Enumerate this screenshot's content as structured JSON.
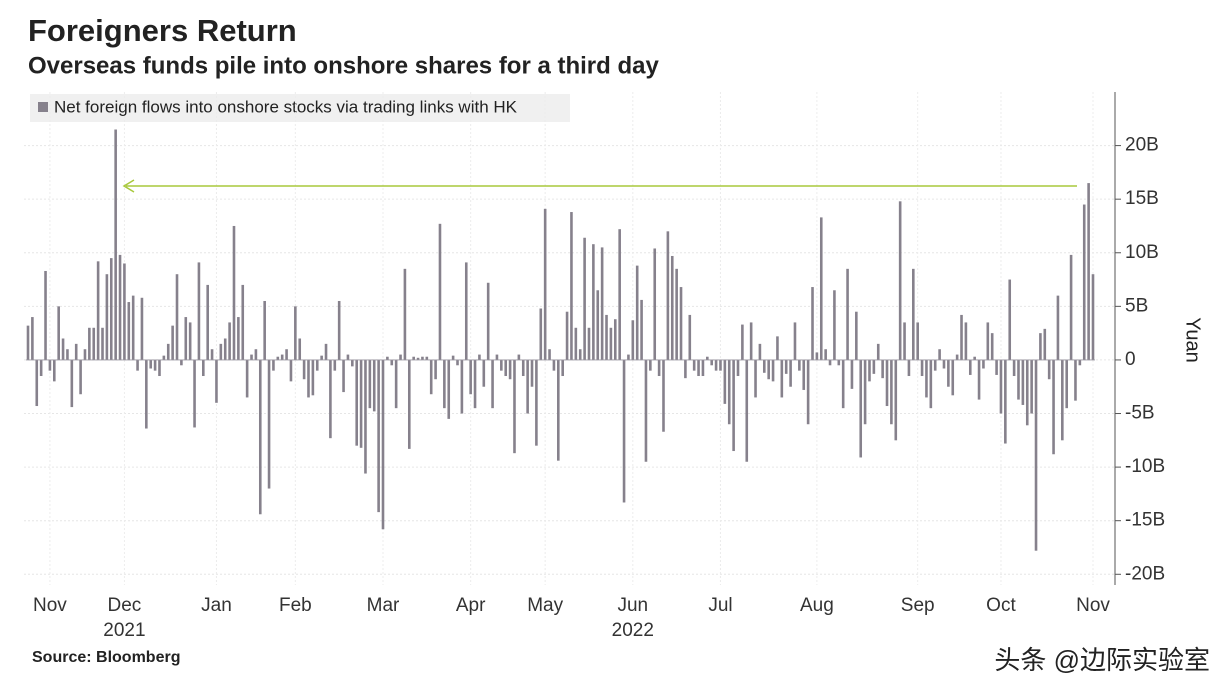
{
  "chart_data": {
    "type": "bar",
    "title": "Foreigners Return",
    "subtitle": "Overseas funds pile into onshore shares for a third day",
    "y_label": "Yuan",
    "source": "Source: Bloomberg",
    "watermark": "头条 @边际实验室",
    "grid": true,
    "legend": "top-left",
    "ylim": [
      -21,
      25
    ],
    "yticks": [
      {
        "value": 20,
        "label": "20B"
      },
      {
        "value": 15,
        "label": "15B"
      },
      {
        "value": 10,
        "label": "10B"
      },
      {
        "value": 5,
        "label": "5B"
      },
      0,
      {
        "value": -5,
        "label": "-5B"
      },
      {
        "value": -10,
        "label": "-10B"
      },
      {
        "value": -15,
        "label": "-15B"
      },
      {
        "value": -20,
        "label": "-20B"
      }
    ],
    "categories": [
      null,
      null,
      null,
      null,
      null,
      "Nov",
      null,
      null,
      null,
      null,
      null,
      null,
      null,
      null,
      null,
      null,
      null,
      null,
      null,
      null,
      null,
      null,
      "Dec",
      null,
      null,
      null,
      null,
      null,
      null,
      null,
      null,
      null,
      null,
      null,
      null,
      null,
      null,
      null,
      null,
      null,
      null,
      null,
      null,
      "Jan",
      null,
      null,
      null,
      null,
      null,
      null,
      null,
      null,
      null,
      null,
      null,
      null,
      null,
      null,
      null,
      null,
      null,
      "Feb",
      null,
      null,
      null,
      null,
      null,
      null,
      null,
      null,
      null,
      null,
      null,
      null,
      null,
      null,
      null,
      null,
      null,
      null,
      null,
      "Mar",
      null,
      null,
      null,
      null,
      null,
      null,
      null,
      null,
      null,
      null,
      null,
      null,
      null,
      null,
      null,
      null,
      null,
      null,
      null,
      "Apr",
      null,
      null,
      null,
      null,
      null,
      null,
      null,
      null,
      null,
      null,
      null,
      null,
      null,
      null,
      null,
      null,
      "May",
      null,
      null,
      null,
      null,
      null,
      null,
      null,
      null,
      null,
      null,
      null,
      null,
      null,
      null,
      null,
      null,
      null,
      null,
      null,
      "Jun",
      null,
      null,
      null,
      null,
      null,
      null,
      null,
      null,
      null,
      null,
      null,
      null,
      null,
      null,
      null,
      null,
      null,
      null,
      null,
      "Jul",
      null,
      null,
      null,
      null,
      null,
      null,
      null,
      null,
      null,
      null,
      null,
      null,
      null,
      null,
      null,
      null,
      null,
      null,
      null,
      null,
      null,
      "Aug",
      null,
      null,
      null,
      null,
      null,
      null,
      null,
      null,
      null,
      null,
      null,
      null,
      null,
      null,
      null,
      null,
      null,
      null,
      null,
      null,
      null,
      null,
      "Sep",
      null,
      null,
      null,
      null,
      null,
      null,
      null,
      null,
      null,
      null,
      null,
      null,
      null,
      null,
      null,
      null,
      null,
      null,
      "Oct",
      null,
      null,
      null,
      null,
      null,
      null,
      null,
      null,
      null,
      null,
      null,
      null,
      null,
      null,
      null,
      null,
      null,
      null,
      null,
      null,
      "Nov"
    ],
    "years": [
      null,
      null,
      null,
      null,
      null,
      null,
      null,
      null,
      null,
      null,
      null,
      null,
      null,
      null,
      null,
      null,
      null,
      null,
      null,
      null,
      null,
      null,
      "2021",
      null,
      null,
      null,
      null,
      null,
      null,
      null,
      null,
      null,
      null,
      null,
      null,
      null,
      null,
      null,
      null,
      null,
      null,
      null,
      null,
      null,
      null,
      null,
      null,
      null,
      null,
      null,
      null,
      null,
      null,
      null,
      null,
      null,
      null,
      null,
      null,
      null,
      null,
      null,
      null,
      null,
      null,
      null,
      null,
      null,
      null,
      null,
      null,
      null,
      null,
      null,
      null,
      null,
      null,
      null,
      null,
      null,
      null,
      null,
      null,
      null,
      null,
      null,
      null,
      null,
      null,
      null,
      null,
      null,
      null,
      null,
      null,
      null,
      null,
      null,
      null,
      null,
      null,
      null,
      null,
      null,
      null,
      null,
      null,
      null,
      null,
      null,
      null,
      null,
      null,
      null,
      null,
      null,
      null,
      null,
      null,
      null,
      null,
      null,
      null,
      null,
      null,
      null,
      null,
      null,
      null,
      null,
      null,
      null,
      null,
      null,
      null,
      null,
      null,
      null,
      "2022",
      null,
      null,
      null,
      null,
      null,
      null,
      null,
      null,
      null,
      null,
      null,
      null,
      null,
      null,
      null,
      null,
      null,
      null,
      null,
      null,
      null,
      null,
      null,
      null,
      null,
      null,
      null,
      null,
      null,
      null,
      null,
      null,
      null,
      null,
      null,
      null,
      null,
      null,
      null,
      null,
      null,
      null,
      null,
      null,
      null,
      null,
      null,
      null,
      null,
      null,
      null,
      null,
      null,
      null,
      null,
      null,
      null,
      null,
      null,
      null,
      null,
      null,
      null,
      null,
      null,
      null,
      null,
      null,
      null,
      null,
      null,
      null,
      null,
      null,
      null,
      null,
      null,
      null,
      null,
      null,
      null,
      null,
      null,
      null,
      null,
      null,
      null,
      null,
      null,
      null,
      null,
      null,
      null,
      null,
      null,
      null,
      null,
      null,
      null,
      null,
      null,
      null,
      null,
      null,
      null
    ],
    "series": [
      {
        "name": "Net foreign flows into onshore stocks via trading links with HK",
        "color": "#86818c",
        "values": [
          3.2,
          4,
          -4.3,
          -1.5,
          8.3,
          -1,
          -2,
          5,
          2,
          1,
          -4.4,
          1.5,
          -3.2,
          1,
          3,
          3,
          9.2,
          3,
          8,
          9.5,
          21.5,
          9.8,
          9,
          5.4,
          6,
          -1,
          5.8,
          -6.4,
          -0.8,
          -1,
          -1.5,
          0.4,
          1.5,
          3.2,
          8,
          -0.5,
          4,
          3.5,
          -6.3,
          9.1,
          -1.5,
          7,
          1,
          -4,
          1.5,
          2,
          3.5,
          12.5,
          4,
          7,
          -3.5,
          0.5,
          1,
          -14.4,
          5.5,
          -12,
          -1,
          0.3,
          0.5,
          1,
          -2,
          5,
          2,
          -1.8,
          -3.5,
          -3.3,
          -1,
          0.4,
          1.5,
          -7.3,
          -1,
          5.5,
          -3,
          0.5,
          -0.6,
          -8,
          -8.2,
          -10.6,
          -4.5,
          -4.8,
          -14.2,
          -15.8,
          0.3,
          -0.5,
          -4.5,
          0.5,
          8.5,
          -8.3,
          0.3,
          0.2,
          0.3,
          0.3,
          -3.2,
          -1.8,
          12.7,
          -4.5,
          -5.5,
          0.4,
          -0.5,
          -5,
          9.1,
          -3.2,
          -4.5,
          0.5,
          -2.5,
          7.2,
          -4.5,
          0.5,
          -1,
          -1.5,
          -1.8,
          -8.7,
          0.5,
          -1.5,
          -5,
          -2.5,
          -8,
          4.8,
          14.1,
          1,
          -1,
          -9.4,
          -1.5,
          4.5,
          13.8,
          3,
          1,
          11.4,
          3,
          10.8,
          6.5,
          10.5,
          4.2,
          3,
          3.8,
          12.2,
          -13.3,
          0.5,
          3.7,
          8.8,
          5.6,
          -9.5,
          -1,
          10.4,
          -1.5,
          -6.7,
          12,
          9.7,
          8.5,
          6.8,
          -1.7,
          4.2,
          -1,
          -1.5,
          -1.5,
          0.3,
          -0.5,
          -1,
          -1,
          -4.1,
          -6,
          -8.5,
          -1.5,
          3.3,
          -9.5,
          3.5,
          -3.5,
          1.5,
          -1.2,
          -1.8,
          -2,
          2.2,
          -3.5,
          -1.3,
          -2.5,
          3.5,
          -1,
          -2.8,
          -6,
          6.8,
          0.7,
          13.3,
          1,
          -0.5,
          6.5,
          -0.5,
          -4.5,
          8.5,
          -2.7,
          4.5,
          -9.1,
          -6,
          -2,
          -1.3,
          1.5,
          -1.7,
          -4.3,
          -6,
          -7.5,
          14.8,
          3.5,
          -1.5,
          8.5,
          3.5,
          -1.5,
          -3.5,
          -4.5,
          -1,
          1,
          -0.8,
          -2.5,
          -3.3,
          0.5,
          4.2,
          3.5,
          -1.4,
          0.3,
          -3.7,
          -0.8,
          3.5,
          2.5,
          -1.4,
          -5,
          -7.8,
          7.5,
          -1.5,
          -3.7,
          -4.2,
          -6.1,
          -5,
          -17.8,
          2.5,
          2.9,
          -1.8,
          -8.8,
          6,
          -7.5,
          -4.5,
          9.8,
          -3.8,
          -0.5,
          14.5,
          16.5,
          8
        ]
      }
    ]
  }
}
